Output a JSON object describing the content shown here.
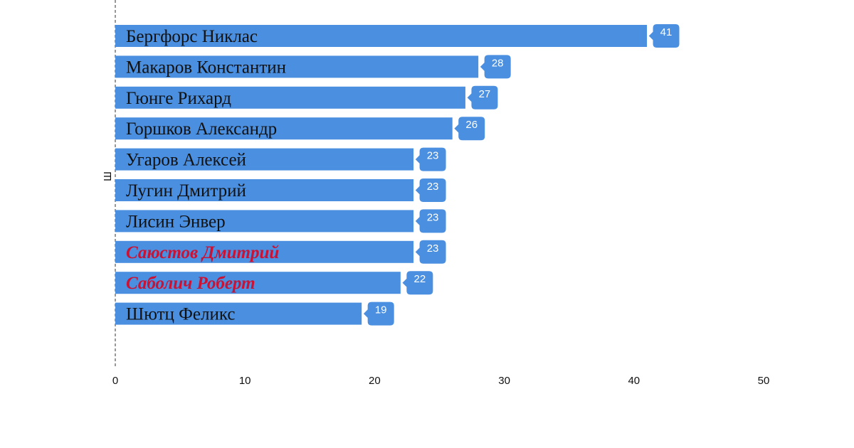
{
  "chart_data": {
    "type": "bar",
    "orientation": "horizontal",
    "categories": [
      "Бергфорс Никлас",
      "Макаров Константин",
      "Гюнге Рихард",
      "Горшков Александр",
      "Угаров Алексей",
      "Лугин Дмитрий",
      "Лисин Энвер",
      "Саюстов Дмитрий",
      "Саболич Роберт",
      "Шютц Феликс"
    ],
    "values": [
      41,
      28,
      27,
      26,
      23,
      23,
      23,
      23,
      22,
      19
    ],
    "highlighted": [
      false,
      false,
      false,
      false,
      false,
      false,
      false,
      true,
      true,
      false
    ],
    "xlim": [
      0,
      50
    ],
    "xticks": [
      0,
      10,
      20,
      30,
      40,
      50
    ],
    "ylabel": "Ш",
    "grid": false,
    "colors": {
      "bar": "#4a8fe0",
      "highlight_text": "#cc1133",
      "text": "#111111",
      "axis": "#555555"
    }
  }
}
